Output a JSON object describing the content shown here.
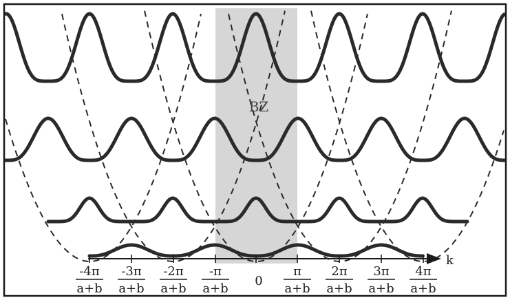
{
  "diagram": {
    "zone_label": "BZ",
    "axis_label": "k",
    "ticks": [
      {
        "num": "-4π",
        "den": "a+b"
      },
      {
        "num": "-3π",
        "den": "a+b"
      },
      {
        "num": "-2π",
        "den": "a+b"
      },
      {
        "num": "-π",
        "den": "a+b"
      },
      {
        "num": "0",
        "den": ""
      },
      {
        "num": "π",
        "den": "a+b"
      },
      {
        "num": "2π",
        "den": "a+b"
      },
      {
        "num": "3π",
        "den": "a+b"
      },
      {
        "num": "4π",
        "den": "a+b"
      }
    ],
    "bands": 4
  }
}
